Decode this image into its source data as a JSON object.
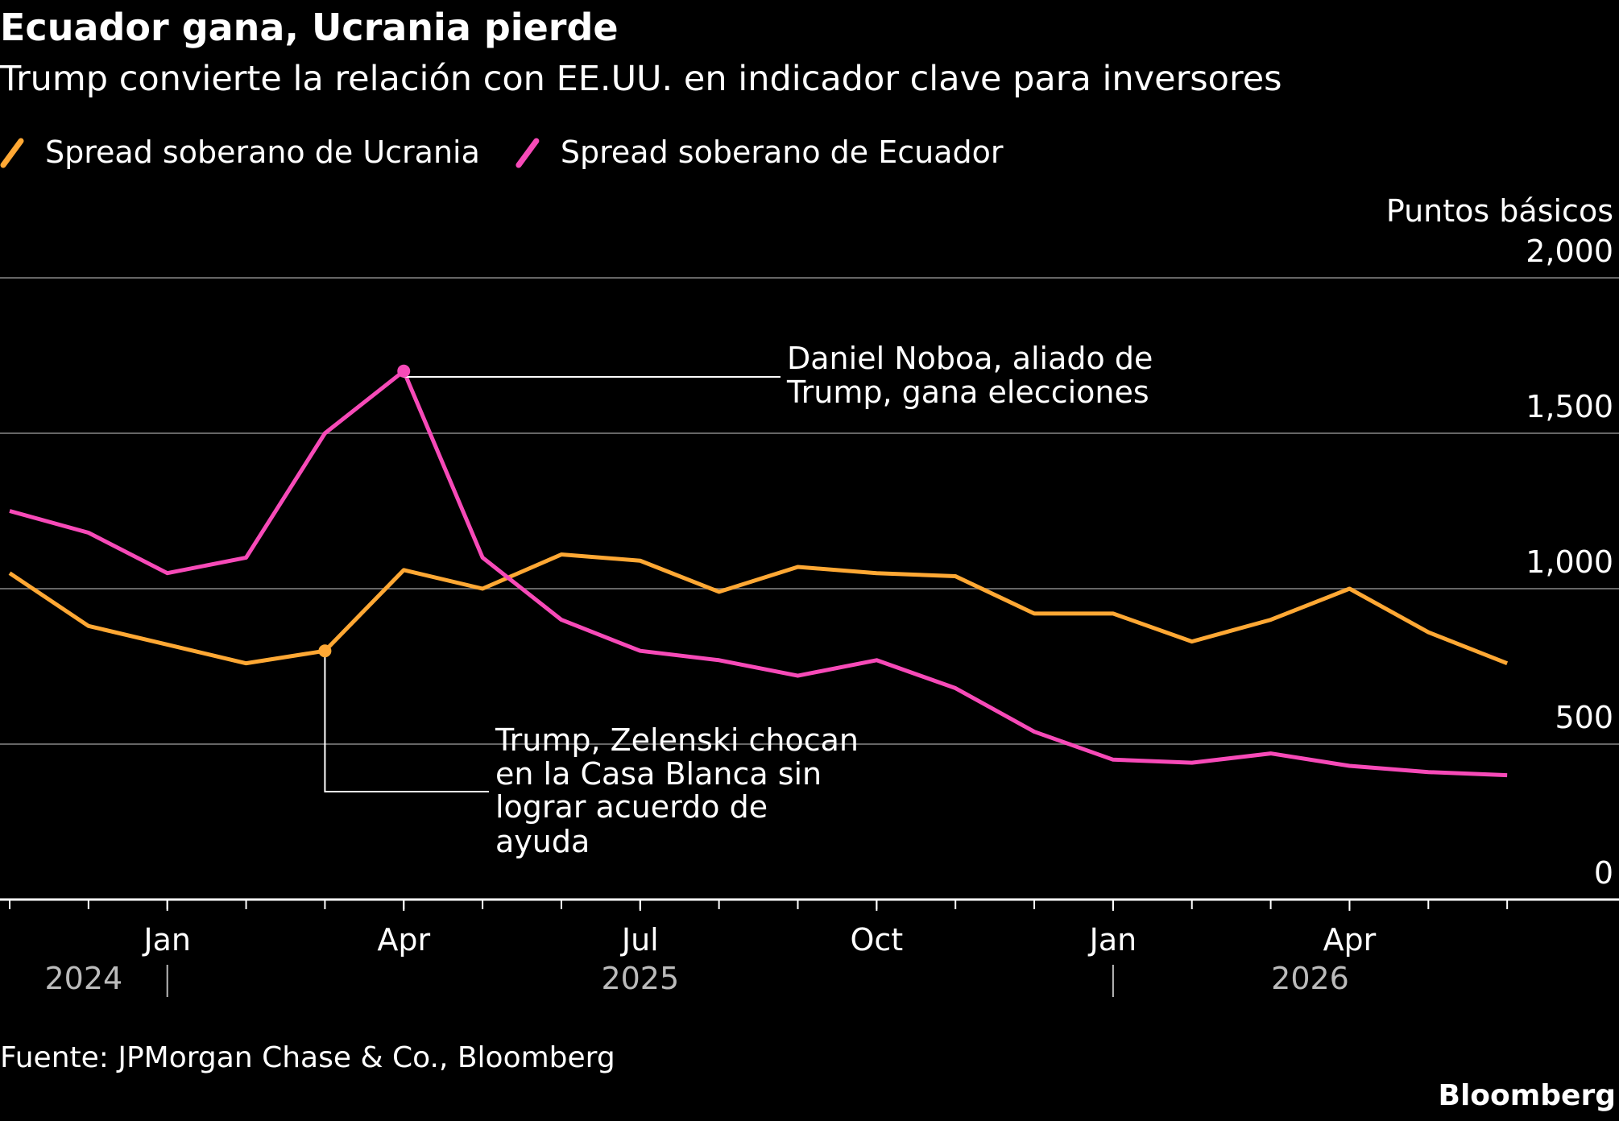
{
  "chart_data": {
    "type": "line",
    "title": "Ecuador gana, Ucrania pierde",
    "subtitle": "Trump convierte la relación con EE.UU. en indicador clave para inversores",
    "y_axis_label": "Puntos básicos",
    "x": [
      "2024-11",
      "2024-12",
      "2025-01",
      "2025-02",
      "2025-03",
      "2025-04",
      "2025-05",
      "2025-06",
      "2025-07",
      "2025-08",
      "2025-09",
      "2025-10",
      "2025-11",
      "2025-12",
      "2026-01",
      "2026-02",
      "2026-03",
      "2026-04",
      "2026-05",
      "2026-06"
    ],
    "series": [
      {
        "name": "Spread soberano de Ucrania",
        "color": "#ffa834",
        "values": [
          1050,
          880,
          820,
          760,
          800,
          1060,
          1000,
          1110,
          1090,
          990,
          1070,
          1050,
          1040,
          920,
          920,
          830,
          900,
          1000,
          860,
          760
        ]
      },
      {
        "name": "Spread soberano de Ecuador",
        "color": "#f74ab8",
        "values": [
          1250,
          1180,
          1050,
          1100,
          1500,
          1700,
          1100,
          900,
          800,
          770,
          720,
          770,
          680,
          540,
          450,
          440,
          470,
          430,
          410,
          400
        ]
      }
    ],
    "xlim": [
      "2024-11",
      "2026-07"
    ],
    "xticks": [
      {
        "value": "2025-01",
        "label": "Jan"
      },
      {
        "value": "2025-04",
        "label": "Apr"
      },
      {
        "value": "2025-07",
        "label": "Jul"
      },
      {
        "value": "2025-10",
        "label": "Oct"
      },
      {
        "value": "2026-01",
        "label": "Jan"
      },
      {
        "value": "2026-04",
        "label": "Apr"
      }
    ],
    "year_labels": [
      "2024",
      "2025",
      "2026"
    ],
    "ylim": [
      0,
      2000
    ],
    "yticks": [
      0,
      500,
      {
        "value": 1000,
        "label": "1,000"
      },
      {
        "value": 1500,
        "label": "1,500"
      },
      {
        "value": 2000,
        "label": "2,000"
      }
    ],
    "grid": true,
    "annotations": [
      {
        "lines": [
          "Daniel Noboa, aliado de",
          "Trump, gana elecciones"
        ]
      },
      {
        "lines": [
          "Trump, Zelenski chocan",
          "en la Casa Blanca sin",
          "lograr acuerdo de",
          "ayuda"
        ]
      }
    ],
    "source": "Fuente: JPMorgan Chase & Co., Bloomberg",
    "brand": "Bloomberg"
  }
}
